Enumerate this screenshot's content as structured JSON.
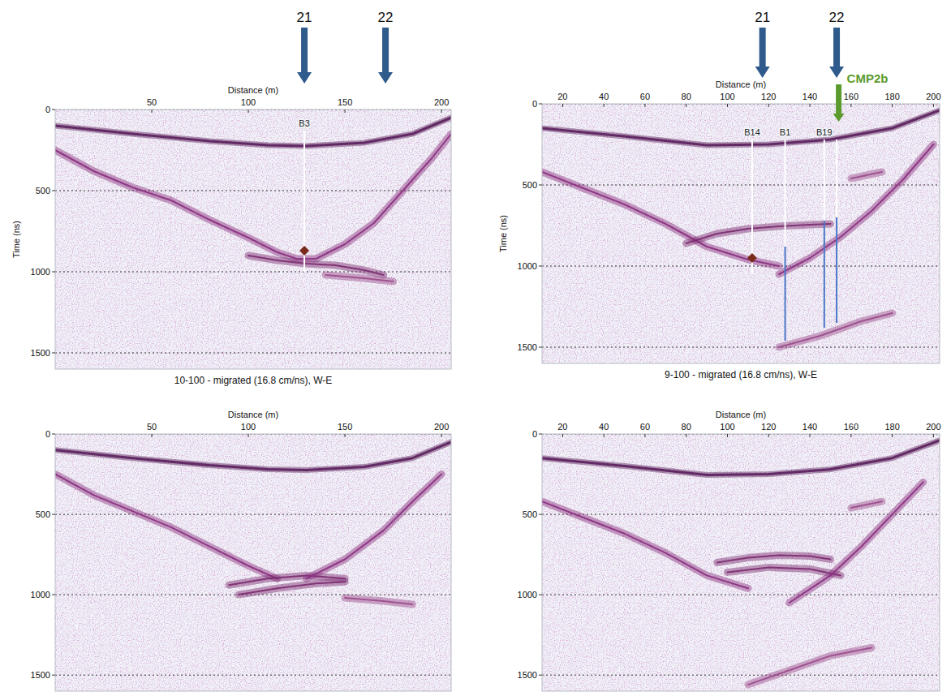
{
  "chart_data": [
    {
      "type": "radargram",
      "title": "10-100 - migrated (16.8 cm/ns), W-E",
      "x_label": "Distance (m)",
      "y_label": "Time (ns)",
      "xlim": [
        0,
        205
      ],
      "ylim": [
        0,
        1600
      ],
      "xticks": [
        50,
        100,
        150,
        200
      ],
      "yticks": [
        0,
        500,
        1000,
        1500
      ],
      "grid": true,
      "series": [
        {
          "color": "#5a1f5c",
          "x": [
            0,
            40,
            80,
            110,
            130,
            160,
            185,
            205
          ],
          "values": [
            100,
            150,
            195,
            220,
            225,
            205,
            150,
            50
          ]
        },
        {
          "color": "#8a2f7e",
          "x": [
            0,
            20,
            40,
            60,
            80,
            100,
            115,
            125,
            135,
            150,
            165,
            180,
            195,
            205
          ],
          "values": [
            250,
            380,
            480,
            560,
            680,
            790,
            880,
            920,
            920,
            830,
            700,
            500,
            300,
            150
          ]
        },
        {
          "color": "#7b2a6e",
          "x": [
            100,
            115,
            130,
            145,
            160,
            170
          ],
          "values": [
            900,
            930,
            950,
            960,
            990,
            1020
          ]
        },
        {
          "color": "#9a4a8a",
          "x": [
            140,
            160,
            175
          ],
          "values": [
            1020,
            1040,
            1060
          ]
        }
      ],
      "boreholes": [
        {
          "label": "B3",
          "x": 129,
          "segments": [
            {
              "values": [
                130,
                1000
              ],
              "color": "#ffffff"
            }
          ]
        }
      ],
      "markers": [
        {
          "x": 129,
          "y": 870,
          "color": "#7a2a1a"
        }
      ],
      "arrows": [
        {
          "label": "21",
          "x": 129,
          "color": "#2e5a8c"
        },
        {
          "label": "22",
          "x": 171,
          "color": "#2e5a8c"
        }
      ]
    },
    {
      "type": "radargram",
      "title": "9-100 - migrated (16.8 cm/ns), W-E",
      "x_label": "Distance (m)",
      "y_label": "Time (ns)",
      "xlim": [
        10,
        203
      ],
      "ylim": [
        0,
        1600
      ],
      "xticks": [
        20,
        40,
        60,
        80,
        100,
        120,
        140,
        160,
        180,
        200
      ],
      "yticks": [
        0,
        500,
        1000,
        1500
      ],
      "grid": true,
      "series": [
        {
          "color": "#5a1f5c",
          "x": [
            10,
            50,
            90,
            120,
            150,
            180,
            203
          ],
          "values": [
            150,
            200,
            255,
            250,
            220,
            150,
            40
          ]
        },
        {
          "color": "#8a2f7e",
          "x": [
            10,
            30,
            50,
            70,
            90,
            110,
            125
          ],
          "values": [
            420,
            520,
            620,
            740,
            880,
            960,
            1000
          ]
        },
        {
          "color": "#7b2a6e",
          "x": [
            80,
            95,
            110,
            125,
            140,
            150
          ],
          "values": [
            860,
            800,
            770,
            755,
            745,
            740
          ]
        },
        {
          "color": "#8a2f7e",
          "x": [
            125,
            140,
            155,
            170,
            185,
            200
          ],
          "values": [
            1050,
            950,
            820,
            660,
            470,
            250
          ]
        },
        {
          "color": "#9a4a8a",
          "x": [
            125,
            145,
            165,
            180
          ],
          "values": [
            1500,
            1430,
            1340,
            1290
          ]
        },
        {
          "color": "#9a4a8a",
          "x": [
            160,
            175
          ],
          "values": [
            460,
            420
          ]
        }
      ],
      "boreholes": [
        {
          "label": "B14",
          "x": 112,
          "segments": [
            {
              "values": [
                220,
                1050
              ],
              "color": "#ffffff"
            }
          ]
        },
        {
          "label": "B1",
          "x": 128,
          "segments": [
            {
              "values": [
                220,
                880
              ],
              "color": "#ffffff"
            },
            {
              "values": [
                880,
                1460
              ],
              "color": "#4a78c8"
            }
          ]
        },
        {
          "label": "B19",
          "x": 147,
          "segments": [
            {
              "values": [
                220,
                720
              ],
              "color": "#ffffff"
            },
            {
              "values": [
                720,
                1380
              ],
              "color": "#4a78c8"
            }
          ]
        },
        {
          "x": 153,
          "segments": [
            {
              "values": [
                220,
                700
              ],
              "color": "#ffffff"
            },
            {
              "values": [
                700,
                1350
              ],
              "color": "#4a78c8"
            }
          ]
        }
      ],
      "markers": [
        {
          "x": 112,
          "y": 950,
          "color": "#7a2a1a"
        }
      ],
      "arrows": [
        {
          "label": "21",
          "x": 117,
          "color": "#2e5a8c"
        },
        {
          "label": "22",
          "x": 153,
          "color": "#2e5a8c"
        }
      ],
      "callouts": [
        {
          "label": "CMP2b",
          "x": 154,
          "color": "#5b9b2e"
        }
      ]
    },
    {
      "type": "radargram",
      "x_label": "Distance (m)",
      "xlim": [
        0,
        205
      ],
      "ylim": [
        0,
        1600
      ],
      "xticks": [
        50,
        100,
        150,
        200
      ],
      "yticks": [
        0,
        500,
        1000,
        1500
      ],
      "grid": true,
      "series": [
        {
          "color": "#5a1f5c",
          "x": [
            0,
            40,
            80,
            110,
            130,
            160,
            185,
            205
          ],
          "values": [
            100,
            150,
            195,
            220,
            225,
            205,
            150,
            50
          ]
        },
        {
          "color": "#8a2f7e",
          "x": [
            0,
            20,
            40,
            60,
            80,
            100,
            115
          ],
          "values": [
            250,
            380,
            480,
            580,
            700,
            820,
            900
          ]
        },
        {
          "color": "#7b2a6e",
          "x": [
            90,
            110,
            130,
            150
          ],
          "values": [
            940,
            900,
            880,
            900
          ]
        },
        {
          "color": "#7b2a6e",
          "x": [
            95,
            115,
            135,
            150
          ],
          "values": [
            1000,
            960,
            930,
            920
          ]
        },
        {
          "color": "#8a2f7e",
          "x": [
            130,
            150,
            170,
            185,
            200
          ],
          "values": [
            900,
            780,
            600,
            420,
            250
          ]
        },
        {
          "color": "#9a4a8a",
          "x": [
            150,
            170,
            185
          ],
          "values": [
            1020,
            1040,
            1060
          ]
        }
      ]
    },
    {
      "type": "radargram",
      "x_label": "Distance (m)",
      "xlim": [
        10,
        203
      ],
      "ylim": [
        0,
        1600
      ],
      "xticks": [
        20,
        40,
        60,
        80,
        100,
        120,
        140,
        160,
        180,
        200
      ],
      "yticks": [
        0,
        500,
        1000,
        1500
      ],
      "grid": true,
      "series": [
        {
          "color": "#5a1f5c",
          "x": [
            10,
            50,
            90,
            120,
            150,
            180,
            203
          ],
          "values": [
            150,
            200,
            255,
            250,
            220,
            150,
            40
          ]
        },
        {
          "color": "#8a2f7e",
          "x": [
            10,
            30,
            50,
            70,
            90,
            110
          ],
          "values": [
            420,
            520,
            620,
            740,
            880,
            960
          ]
        },
        {
          "color": "#7b2a6e",
          "x": [
            95,
            110,
            125,
            140,
            150
          ],
          "values": [
            800,
            770,
            755,
            760,
            780
          ]
        },
        {
          "color": "#7b2a6e",
          "x": [
            100,
            120,
            140,
            155
          ],
          "values": [
            860,
            830,
            840,
            880
          ]
        },
        {
          "color": "#8a2f7e",
          "x": [
            130,
            150,
            165,
            180,
            195
          ],
          "values": [
            1050,
            880,
            700,
            500,
            300
          ]
        },
        {
          "color": "#9a4a8a",
          "x": [
            110,
            130,
            150,
            170
          ],
          "values": [
            1560,
            1470,
            1380,
            1330
          ]
        },
        {
          "color": "#9a4a8a",
          "x": [
            160,
            175
          ],
          "values": [
            460,
            420
          ]
        }
      ]
    }
  ]
}
